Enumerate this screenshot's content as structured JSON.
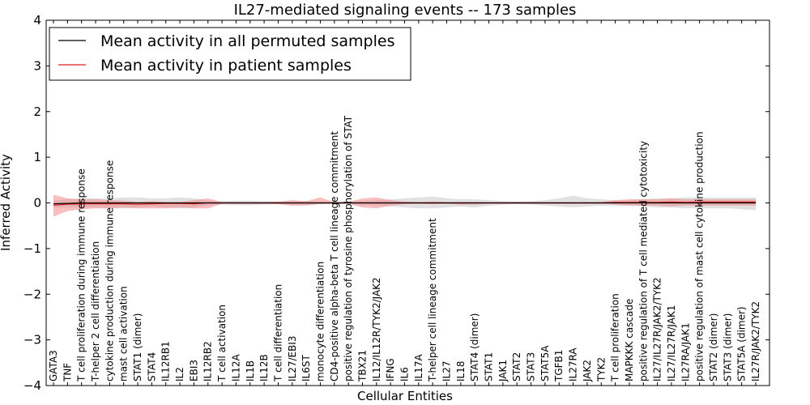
{
  "chart_data": {
    "type": "line",
    "title": "IL27-mediated signaling events -- 173 samples",
    "xlabel": "Cellular Entities",
    "ylabel": "Inferred Activity",
    "ylim": [
      -4,
      4
    ],
    "yticks": [
      -4,
      -3,
      -2,
      -1,
      0,
      1,
      2,
      3,
      4
    ],
    "ytick_labels": [
      "−4",
      "−3",
      "−2",
      "−1",
      "0",
      "1",
      "2",
      "3",
      "4"
    ],
    "grid": false,
    "legend_position": "top-left",
    "categories": [
      "GATA3",
      "TNF",
      "T cell proliferation during immune response",
      "T-helper 2 cell differentiation",
      "cytokine production during immune response",
      "mast cell activation",
      "STAT1 (dimer)",
      "STAT4",
      "IL12RB1",
      "IL2",
      "EBI3",
      "IL12RB2",
      "T cell activation",
      "IL12A",
      "IL1B",
      "IL12B",
      "T cell differentiation",
      "IL27/EBI3",
      "IL6ST",
      "monocyte differentiation",
      "CD4-positive alpha-beta T cell lineage commitment",
      "positive regulation of tyrosine phosphorylation of STAT",
      "TBX21",
      "IL12/IL12R/TYK2/JAK2",
      "IFNG",
      "IL6",
      "IL17A",
      "T-helper cell lineage commitment",
      "IL27",
      "IL18",
      "STAT4 (dimer)",
      "STAT1",
      "JAK1",
      "STAT2",
      "STAT3",
      "STAT5A",
      "TGFB1",
      "IL27RA",
      "JAK2",
      "TYK2",
      "T cell proliferation",
      "MAPKKK cascade",
      "positive regulation of T cell mediated cytotoxicity",
      "IL27/IL27R/JAK2/TYK2",
      "IL27/IL27R/JAK1",
      "IL27RA/JAK1",
      "positive regulation of mast cell cytokine production",
      "STAT2 (dimer)",
      "STAT3 (dimer)",
      "STAT5A (dimer)",
      "IL27R/JAK2/TYK2"
    ],
    "series": [
      {
        "name": "Mean activity in all permuted samples",
        "color": "#000000",
        "values": [
          -0.02,
          -0.01,
          0.0,
          0.0,
          0.0,
          0.0,
          0.0,
          0.0,
          0.0,
          0.0,
          0.0,
          0.0,
          0.0,
          0.0,
          0.0,
          0.0,
          0.0,
          0.0,
          0.0,
          0.0,
          0.0,
          0.0,
          0.0,
          0.0,
          0.0,
          0.0,
          0.0,
          0.0,
          0.0,
          0.0,
          0.0,
          0.0,
          0.0,
          0.0,
          0.0,
          0.0,
          0.0,
          0.0,
          0.0,
          0.0,
          0.0,
          0.0,
          0.0,
          0.0,
          0.0,
          0.0,
          0.0,
          0.0,
          0.0,
          0.0,
          0.0
        ],
        "band_upper": [
          0.05,
          0.08,
          0.1,
          0.1,
          0.1,
          0.12,
          0.12,
          0.1,
          0.1,
          0.12,
          0.1,
          0.05,
          0.04,
          0.05,
          0.05,
          0.04,
          0.03,
          0.04,
          0.04,
          0.03,
          0.02,
          0.03,
          0.05,
          0.06,
          0.08,
          0.1,
          0.12,
          0.14,
          0.1,
          0.08,
          0.08,
          0.06,
          0.04,
          0.03,
          0.04,
          0.06,
          0.1,
          0.16,
          0.1,
          0.08,
          0.06,
          0.06,
          0.08,
          0.1,
          0.1,
          0.12,
          0.12,
          0.12,
          0.12,
          0.12,
          0.12
        ],
        "band_lower": [
          -0.1,
          -0.1,
          -0.1,
          -0.1,
          -0.12,
          -0.12,
          -0.1,
          -0.08,
          -0.1,
          -0.12,
          -0.1,
          -0.05,
          -0.04,
          -0.05,
          -0.05,
          -0.04,
          -0.03,
          -0.04,
          -0.04,
          -0.03,
          -0.02,
          -0.03,
          -0.05,
          -0.06,
          -0.08,
          -0.1,
          -0.12,
          -0.12,
          -0.1,
          -0.08,
          -0.1,
          -0.06,
          -0.04,
          -0.03,
          -0.04,
          -0.06,
          -0.08,
          -0.1,
          -0.08,
          -0.06,
          -0.06,
          -0.06,
          -0.08,
          -0.1,
          -0.1,
          -0.12,
          -0.12,
          -0.12,
          -0.12,
          -0.14,
          -0.16
        ],
        "band_color": "#aaaaaa"
      },
      {
        "name": "Mean activity in patient samples",
        "color": "#d62020",
        "values": [
          -0.05,
          -0.03,
          -0.02,
          -0.02,
          -0.02,
          -0.02,
          -0.03,
          -0.02,
          -0.01,
          -0.01,
          -0.02,
          0.0,
          0.0,
          0.0,
          0.0,
          0.0,
          0.0,
          0.0,
          0.0,
          0.0,
          0.0,
          0.0,
          0.0,
          0.0,
          0.0,
          0.0,
          0.0,
          0.0,
          0.0,
          0.0,
          0.0,
          0.0,
          0.0,
          0.0,
          0.0,
          0.0,
          0.0,
          0.0,
          0.0,
          0.0,
          0.01,
          0.01,
          0.01,
          0.01,
          0.02,
          0.01,
          0.02,
          0.02,
          0.02,
          0.02,
          0.02
        ],
        "band_upper": [
          0.18,
          0.1,
          0.08,
          0.08,
          0.06,
          0.05,
          0.02,
          0.04,
          0.02,
          0.02,
          0.06,
          0.1,
          0.02,
          0.02,
          0.02,
          0.02,
          0.03,
          0.06,
          0.04,
          0.12,
          0.02,
          0.02,
          0.1,
          0.12,
          0.06,
          0.03,
          0.02,
          0.03,
          0.02,
          0.02,
          0.02,
          0.02,
          0.02,
          0.02,
          0.02,
          0.02,
          0.02,
          0.02,
          0.02,
          0.02,
          0.06,
          0.08,
          0.08,
          0.08,
          0.1,
          0.08,
          0.08,
          0.08,
          0.08,
          0.08,
          0.08
        ],
        "band_lower": [
          -0.3,
          -0.18,
          -0.14,
          -0.12,
          -0.12,
          -0.1,
          -0.12,
          -0.12,
          -0.12,
          -0.1,
          -0.12,
          -0.12,
          -0.02,
          -0.02,
          -0.02,
          -0.02,
          -0.03,
          -0.06,
          -0.06,
          -0.02,
          -0.02,
          -0.02,
          -0.1,
          -0.12,
          -0.06,
          -0.03,
          -0.02,
          -0.03,
          -0.02,
          -0.04,
          -0.04,
          -0.02,
          -0.02,
          -0.02,
          -0.02,
          -0.02,
          -0.02,
          -0.02,
          -0.02,
          -0.02,
          -0.04,
          -0.06,
          -0.06,
          -0.06,
          -0.08,
          -0.06,
          -0.06,
          -0.06,
          -0.06,
          -0.06,
          -0.06
        ],
        "band_color": "#f08080"
      }
    ]
  }
}
